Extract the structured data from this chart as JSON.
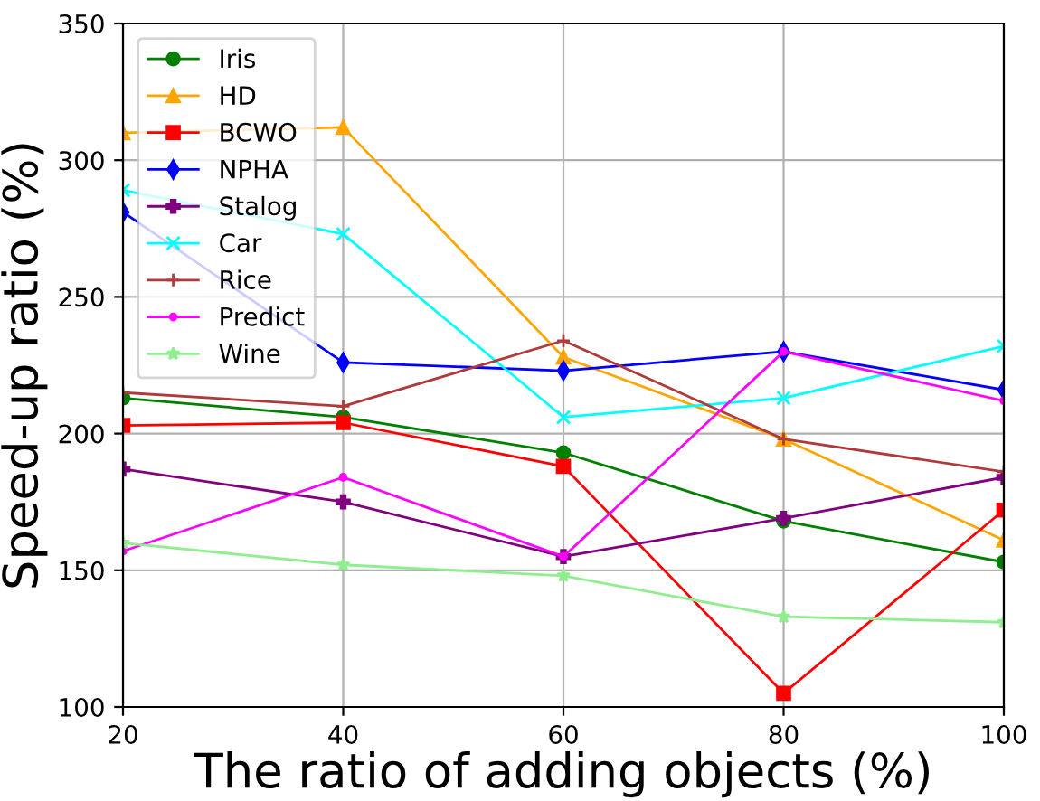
{
  "chart_data": {
    "type": "line",
    "xlabel": "The ratio of adding objects (%)",
    "ylabel": "Speed-up ratio (%)",
    "x": [
      20,
      40,
      60,
      80,
      100
    ],
    "xlim": [
      20,
      100
    ],
    "xticks": [
      20,
      40,
      60,
      80,
      100
    ],
    "ylim": [
      100,
      350
    ],
    "yticks": [
      100,
      150,
      200,
      250,
      300,
      350
    ],
    "grid": true,
    "legend": "top left",
    "series": [
      {
        "name": "Iris",
        "color": "#008000",
        "marker": "circle",
        "values": [
          213,
          206,
          193,
          168,
          153
        ]
      },
      {
        "name": "HD",
        "color": "#ffa500",
        "marker": "triangle",
        "values": [
          310,
          312,
          228,
          198,
          161
        ]
      },
      {
        "name": "BCWO",
        "color": "#ff0000",
        "marker": "square",
        "values": [
          203,
          204,
          188,
          105,
          172
        ]
      },
      {
        "name": "NPHA",
        "color": "#0000ff",
        "marker": "diamond",
        "values": [
          281,
          226,
          223,
          230,
          216
        ]
      },
      {
        "name": "Stalog",
        "color": "#800080",
        "marker": "plus",
        "values": [
          187,
          175,
          155,
          169,
          184
        ]
      },
      {
        "name": "Car",
        "color": "#00ffff",
        "marker": "x",
        "values": [
          289,
          273,
          206,
          213,
          232
        ]
      },
      {
        "name": "Rice",
        "color": "#b03a3a",
        "marker": "cross",
        "values": [
          215,
          210,
          234,
          198,
          186
        ]
      },
      {
        "name": "Predict",
        "color": "#ff00ff",
        "marker": "point",
        "values": [
          157,
          184,
          155,
          230,
          212
        ]
      },
      {
        "name": "Wine",
        "color": "#90ee90",
        "marker": "star",
        "values": [
          160,
          152,
          148,
          133,
          131
        ]
      }
    ]
  }
}
